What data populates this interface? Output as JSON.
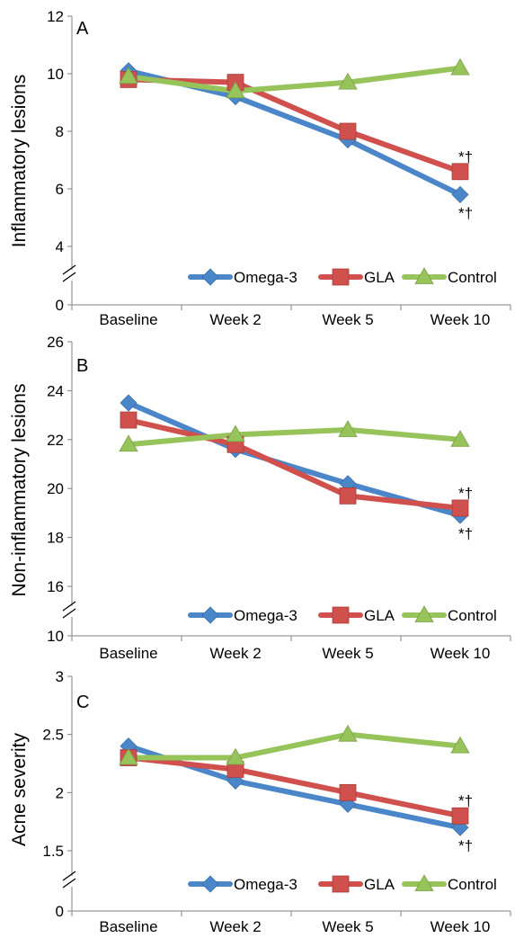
{
  "chart_data": [
    {
      "type": "line",
      "panel_label": "A",
      "ylabel": "Inflammatory lesions",
      "categories": [
        "Baseline",
        "Week 2",
        "Week 5",
        "Week 10"
      ],
      "y_ticks": [
        "4",
        "6",
        "8",
        "10",
        "12"
      ],
      "y_zero_label": "0",
      "ylim": [
        4,
        12
      ],
      "axis_break": true,
      "grid": false,
      "legend_position": "bottom-right",
      "series": [
        {
          "name": "Omega-3",
          "color": "#4A86C8",
          "marker": "diamond",
          "values": [
            10.1,
            9.2,
            7.7,
            5.8
          ]
        },
        {
          "name": "GLA",
          "color": "#CF504C",
          "marker": "square",
          "values": [
            9.8,
            9.7,
            8.0,
            6.6
          ]
        },
        {
          "name": "Control",
          "color": "#97C35B",
          "marker": "triangle",
          "values": [
            9.9,
            9.4,
            9.7,
            10.2
          ]
        }
      ],
      "annotations": [
        {
          "text": "*†",
          "series": "GLA",
          "category": "Week 10",
          "position": "above"
        },
        {
          "text": "*†",
          "series": "Omega-3",
          "category": "Week 10",
          "position": "below"
        }
      ]
    },
    {
      "type": "line",
      "panel_label": "B",
      "ylabel": "Non-inflammatory lesions",
      "categories": [
        "Baseline",
        "Week 2",
        "Week 5",
        "Week 10"
      ],
      "y_ticks": [
        "16",
        "18",
        "20",
        "22",
        "24",
        "26"
      ],
      "y_zero_label": "10",
      "ylim": [
        16,
        26
      ],
      "axis_break": true,
      "grid": false,
      "legend_position": "bottom-right",
      "series": [
        {
          "name": "Omega-3",
          "color": "#4A86C8",
          "marker": "diamond",
          "values": [
            23.5,
            21.6,
            20.2,
            18.9
          ]
        },
        {
          "name": "GLA",
          "color": "#CF504C",
          "marker": "square",
          "values": [
            22.8,
            21.8,
            19.7,
            19.2
          ]
        },
        {
          "name": "Control",
          "color": "#97C35B",
          "marker": "triangle",
          "values": [
            21.8,
            22.2,
            22.4,
            22.0
          ]
        }
      ],
      "annotations": [
        {
          "text": "*†",
          "series": "GLA",
          "category": "Week 10",
          "position": "above"
        },
        {
          "text": "*†",
          "series": "Omega-3",
          "category": "Week 10",
          "position": "below"
        }
      ]
    },
    {
      "type": "line",
      "panel_label": "C",
      "ylabel": "Acne severity",
      "categories": [
        "Baseline",
        "Week 2",
        "Week 5",
        "Week 10"
      ],
      "y_ticks": [
        "1.5",
        "2",
        "2.5",
        "3"
      ],
      "y_zero_label": "0",
      "ylim": [
        1.5,
        3
      ],
      "axis_break": true,
      "grid": false,
      "legend_position": "bottom-right",
      "series": [
        {
          "name": "Omega-3",
          "color": "#4A86C8",
          "marker": "diamond",
          "values": [
            2.4,
            2.1,
            1.9,
            1.7
          ]
        },
        {
          "name": "GLA",
          "color": "#CF504C",
          "marker": "square",
          "values": [
            2.3,
            2.2,
            2.0,
            1.8
          ]
        },
        {
          "name": "Control",
          "color": "#97C35B",
          "marker": "triangle",
          "values": [
            2.3,
            2.3,
            2.5,
            2.4
          ]
        }
      ],
      "annotations": [
        {
          "text": "*†",
          "series": "GLA",
          "category": "Week 10",
          "position": "above"
        },
        {
          "text": "*†",
          "series": "Omega-3",
          "category": "Week 10",
          "position": "below"
        }
      ]
    }
  ]
}
